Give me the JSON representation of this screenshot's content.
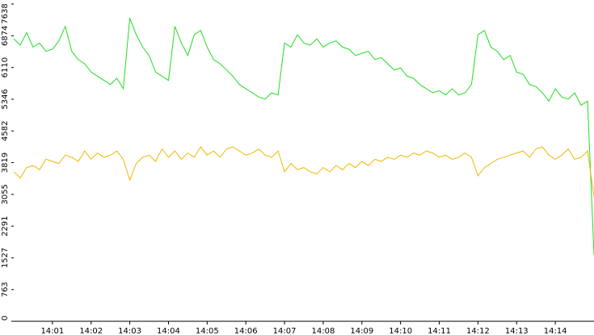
{
  "chart_data": {
    "type": "line",
    "series": [
      {
        "color": "#22dd22",
        "values": [
          6800,
          6650,
          6950,
          6600,
          6700,
          6500,
          6550,
          6750,
          7100,
          6500,
          6300,
          6200,
          6000,
          5900,
          5800,
          5700,
          5850,
          5600,
          7300,
          6900,
          6600,
          6400,
          6000,
          5900,
          5800,
          7100,
          6700,
          6400,
          6900,
          7000,
          6600,
          6300,
          6200,
          6050,
          5900,
          5700,
          5600,
          5500,
          5400,
          5350,
          5500,
          5450,
          6700,
          6600,
          6900,
          6700,
          6650,
          6800,
          6600,
          6700,
          6750,
          6600,
          6550,
          6400,
          6450,
          6500,
          6300,
          6350,
          6200,
          6050,
          6100,
          5900,
          5850,
          5700,
          5600,
          5500,
          5550,
          5450,
          5600,
          5450,
          5500,
          5700,
          6900,
          7000,
          6600,
          6500,
          6300,
          6400,
          6000,
          5950,
          5700,
          5650,
          5500,
          5300,
          5600,
          5400,
          5350,
          5500,
          5200,
          5300,
          1600
        ]
      },
      {
        "color": "#f2b600",
        "values": [
          3600,
          3450,
          3700,
          3750,
          3650,
          3900,
          3850,
          3800,
          4000,
          3950,
          3850,
          4100,
          3900,
          4050,
          3950,
          4000,
          4100,
          3900,
          3400,
          3800,
          3950,
          4000,
          3850,
          4150,
          3950,
          4100,
          3900,
          4050,
          3950,
          4200,
          4000,
          4100,
          3950,
          4150,
          4200,
          4100,
          4000,
          4050,
          4150,
          4000,
          3950,
          4100,
          3600,
          3800,
          3650,
          3700,
          3600,
          3550,
          3700,
          3600,
          3750,
          3650,
          3800,
          3700,
          3850,
          3750,
          3900,
          3850,
          3950,
          3900,
          4000,
          3950,
          4050,
          4000,
          4100,
          4050,
          3950,
          4000,
          3900,
          3950,
          4050,
          3950,
          3500,
          3700,
          3800,
          3900,
          3950,
          4000,
          4050,
          4100,
          3950,
          4150,
          4200,
          4000,
          3900,
          4000,
          4150,
          3900,
          3950,
          4100,
          3000
        ]
      }
    ],
    "xlim": [
      0,
      90
    ],
    "xticks": [
      {
        "value": 6,
        "label": "14:01"
      },
      {
        "value": 12,
        "label": "14:02"
      },
      {
        "value": 18,
        "label": "14:03"
      },
      {
        "value": 24,
        "label": "14:04"
      },
      {
        "value": 30,
        "label": "14:05"
      },
      {
        "value": 36,
        "label": "14:06"
      },
      {
        "value": 42,
        "label": "14:07"
      },
      {
        "value": 48,
        "label": "14:08"
      },
      {
        "value": 54,
        "label": "14:09"
      },
      {
        "value": 60,
        "label": "14:10"
      },
      {
        "value": 66,
        "label": "14:11"
      },
      {
        "value": 72,
        "label": "14:12"
      },
      {
        "value": 78,
        "label": "14:13"
      },
      {
        "value": 84,
        "label": "14:14"
      }
    ],
    "ylim": [
      0,
      7638
    ],
    "yticks": [
      0,
      763,
      1527,
      2291,
      3055,
      3819,
      4582,
      5346,
      6110,
      6874,
      7638
    ]
  }
}
